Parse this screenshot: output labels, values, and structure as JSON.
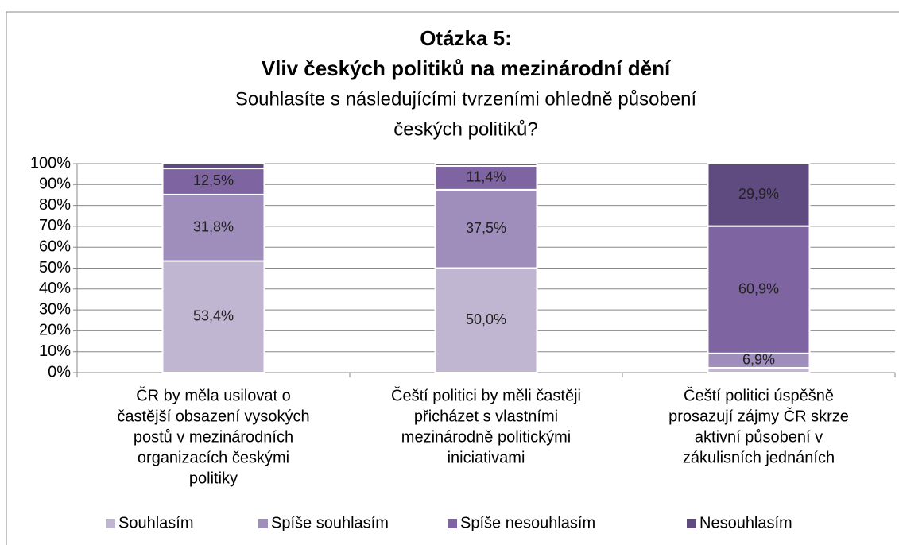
{
  "chart_data": {
    "type": "stacked_bar",
    "title": [
      "Otázka 5:",
      "Vliv českých politiků na mezinárodní dění"
    ],
    "subtitle": [
      "Souhlasíte s následujícími tvrzeními ohledně působení",
      "českých politiků?"
    ],
    "categories": [
      [
        "ČR by měla usilovat o",
        "častější obsazení vysokých",
        "postů v mezinárodních",
        "organizacích českými",
        "politiky"
      ],
      [
        "Čeští politici by měli častěji",
        "přicházet s vlastními",
        "mezinárodně politickými",
        "iniciativami"
      ],
      [
        "Čeští politici úspěšně",
        "prosazují zájmy ČR skrze",
        "aktivní působení v",
        "zákulisních jednáních"
      ]
    ],
    "series": [
      {
        "name": "Souhlasím",
        "color": "#c0b6d2",
        "values": [
          53.4,
          50.0,
          2.3
        ],
        "value_labels": [
          "53,4%",
          "50,0%",
          null
        ]
      },
      {
        "name": "Spíše souhlasím",
        "color": "#9f8dbb",
        "values": [
          31.8,
          37.5,
          6.9
        ],
        "value_labels": [
          "31,8%",
          "37,5%",
          "6,9%"
        ]
      },
      {
        "name": "Spíše nesouhlasím",
        "color": "#7e64a1",
        "values": [
          12.5,
          11.4,
          60.9
        ],
        "value_labels": [
          "12,5%",
          "11,4%",
          "60,9%"
        ]
      },
      {
        "name": "Nesouhlasím",
        "color": "#604b81",
        "values": [
          2.3,
          1.1,
          29.9
        ],
        "value_labels": [
          null,
          null,
          "29,9%"
        ]
      }
    ],
    "ylim": [
      0,
      100
    ],
    "yticks": [
      {
        "value": 0,
        "label": "0%"
      },
      {
        "value": 10,
        "label": "10%"
      },
      {
        "value": 20,
        "label": "20%"
      },
      {
        "value": 30,
        "label": "30%"
      },
      {
        "value": 40,
        "label": "40%"
      },
      {
        "value": 50,
        "label": "50%"
      },
      {
        "value": 60,
        "label": "60%"
      },
      {
        "value": 70,
        "label": "70%"
      },
      {
        "value": 80,
        "label": "80%"
      },
      {
        "value": 90,
        "label": "90%"
      },
      {
        "value": 100,
        "label": "100%"
      }
    ],
    "grid": true,
    "legend": "bottom"
  }
}
